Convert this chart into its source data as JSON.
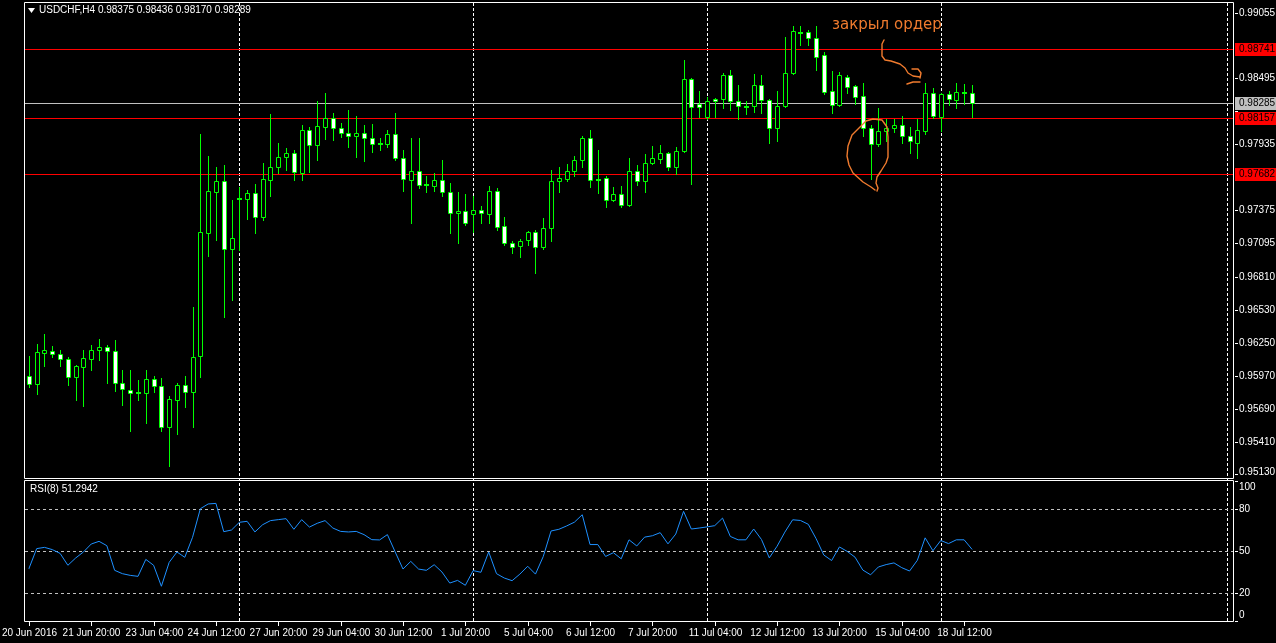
{
  "chart_data": [
    {
      "type": "candlestick",
      "title": "USDCHF,H4 0.98375 0.98436 0.98170 0.98289",
      "categories": [
        null,
        null,
        null,
        null,
        null,
        null,
        null,
        null,
        null,
        null,
        null,
        null,
        null,
        null,
        null,
        null,
        null,
        null,
        null,
        null,
        null,
        null,
        null,
        null,
        null,
        null,
        null,
        null,
        null,
        null,
        null,
        null,
        null,
        null,
        null,
        null,
        null,
        null,
        null,
        null,
        null,
        null,
        null,
        null,
        null,
        null,
        null,
        null,
        null,
        null,
        null,
        null,
        null,
        null,
        null,
        null,
        null,
        null,
        null,
        null,
        null,
        null,
        null,
        null,
        null,
        null,
        null,
        null,
        null,
        null,
        null,
        null,
        null,
        null,
        null,
        null,
        null,
        null,
        null,
        null,
        null,
        null,
        null,
        null,
        null,
        null,
        null,
        null,
        null,
        null,
        null,
        null,
        null,
        null,
        null,
        null,
        null,
        null,
        null,
        null,
        null,
        null,
        null,
        null,
        null,
        null,
        null,
        null,
        null,
        null,
        null,
        null,
        null,
        null,
        null,
        null,
        null,
        null,
        null,
        null,
        null,
        null,
        null,
        null,
        null,
        null,
        null,
        null,
        null,
        null,
        null,
        null,
        null,
        null,
        null,
        null,
        null,
        null,
        null,
        null,
        null,
        null,
        null,
        null,
        null,
        null,
        null,
        null,
        null,
        null,
        null,
        null,
        null,
        null,
        null
      ],
      "ohlc": [
        [
          0.9597,
          0.9614,
          0.9587,
          0.959
        ],
        [
          0.959,
          0.9624,
          0.9581,
          0.9617
        ],
        [
          0.9616,
          0.9632,
          0.9605,
          0.9619
        ],
        [
          0.9618,
          0.9622,
          0.9613,
          0.9615
        ],
        [
          0.9615,
          0.9619,
          0.9605,
          0.9611
        ],
        [
          0.9611,
          0.9613,
          0.9589,
          0.9596
        ],
        [
          0.9596,
          0.9606,
          0.9576,
          0.9605
        ],
        [
          0.9604,
          0.9619,
          0.9571,
          0.9612
        ],
        [
          0.9611,
          0.9623,
          0.9602,
          0.9619
        ],
        [
          0.9619,
          0.9628,
          0.961,
          0.9621
        ],
        [
          0.9621,
          0.9623,
          0.9591,
          0.9618
        ],
        [
          0.9618,
          0.9627,
          0.9584,
          0.9591
        ],
        [
          0.9591,
          0.9602,
          0.9572,
          0.9586
        ],
        [
          0.9585,
          0.9602,
          0.955,
          0.9582
        ],
        [
          0.9582,
          0.9593,
          0.9576,
          0.9583
        ],
        [
          0.9582,
          0.9602,
          0.9557,
          0.9594
        ],
        [
          0.9594,
          0.9597,
          0.9583,
          0.9588
        ],
        [
          0.9588,
          0.9595,
          0.955,
          0.9553
        ],
        [
          0.9553,
          0.958,
          0.952,
          0.9577
        ],
        [
          0.9576,
          0.9591,
          0.9547,
          0.9589
        ],
        [
          0.9589,
          0.9597,
          0.957,
          0.9583
        ],
        [
          0.9583,
          0.9655,
          0.9553,
          0.9613
        ],
        [
          0.9614,
          0.9802,
          0.9596,
          0.9719
        ],
        [
          0.9718,
          0.9784,
          0.9699,
          0.9754
        ],
        [
          0.9753,
          0.9774,
          0.9712,
          0.9762
        ],
        [
          0.9762,
          0.9776,
          0.9647,
          0.9705
        ],
        [
          0.9705,
          0.9746,
          0.9661,
          0.9714
        ],
        [
          0.9747,
          0.9757,
          0.9704,
          0.9748
        ],
        [
          0.9747,
          0.9755,
          0.973,
          0.9752
        ],
        [
          0.9752,
          0.976,
          0.9718,
          0.9732
        ],
        [
          0.9732,
          0.9778,
          0.9729,
          0.9764
        ],
        [
          0.9763,
          0.9819,
          0.975,
          0.9774
        ],
        [
          0.9774,
          0.9795,
          0.9769,
          0.9783
        ],
        [
          0.9783,
          0.979,
          0.9772,
          0.9786
        ],
        [
          0.9786,
          0.9789,
          0.9763,
          0.977
        ],
        [
          0.9769,
          0.981,
          0.9763,
          0.9806
        ],
        [
          0.9806,
          0.9808,
          0.977,
          0.9793
        ],
        [
          0.9793,
          0.983,
          0.978,
          0.9809
        ],
        [
          0.9808,
          0.9837,
          0.9798,
          0.9816
        ],
        [
          0.9816,
          0.982,
          0.9797,
          0.9807
        ],
        [
          0.9807,
          0.9812,
          0.98,
          0.9803
        ],
        [
          0.9803,
          0.9823,
          0.9791,
          0.9801
        ],
        [
          0.9801,
          0.9818,
          0.9783,
          0.9803
        ],
        [
          0.9803,
          0.981,
          0.9779,
          0.9799
        ],
        [
          0.9799,
          0.9811,
          0.9787,
          0.9794
        ],
        [
          0.9794,
          0.9799,
          0.9789,
          0.9795
        ],
        [
          0.9794,
          0.9806,
          0.9791,
          0.9802
        ],
        [
          0.9802,
          0.982,
          0.978,
          0.9782
        ],
        [
          0.9782,
          0.9789,
          0.9754,
          0.9764
        ],
        [
          0.9763,
          0.9799,
          0.9727,
          0.9771
        ],
        [
          0.9771,
          0.9799,
          0.9756,
          0.9759
        ],
        [
          0.9759,
          0.9767,
          0.9753,
          0.976
        ],
        [
          0.9758,
          0.9769,
          0.9754,
          0.9763
        ],
        [
          0.9763,
          0.978,
          0.975,
          0.9753
        ],
        [
          0.9753,
          0.9761,
          0.9718,
          0.9735
        ],
        [
          0.9735,
          0.9753,
          0.971,
          0.9737
        ],
        [
          0.9737,
          0.9751,
          0.9725,
          0.9727
        ],
        [
          0.9734,
          0.975,
          0.9719,
          0.9738
        ],
        [
          0.9738,
          0.9741,
          0.9727,
          0.9735
        ],
        [
          0.9734,
          0.9758,
          0.9727,
          0.9754
        ],
        [
          0.9754,
          0.9756,
          0.9721,
          0.9723
        ],
        [
          0.9724,
          0.9732,
          0.9708,
          0.971
        ],
        [
          0.971,
          0.9711,
          0.9701,
          0.9706
        ],
        [
          0.9707,
          0.9713,
          0.9698,
          0.9711
        ],
        [
          0.9712,
          0.972,
          0.9708,
          0.9719
        ],
        [
          0.9719,
          0.9721,
          0.9684,
          0.9706
        ],
        [
          0.9706,
          0.9731,
          0.9705,
          0.9722
        ],
        [
          0.9722,
          0.9772,
          0.9711,
          0.9762
        ],
        [
          0.9762,
          0.9774,
          0.9753,
          0.9765
        ],
        [
          0.9764,
          0.9777,
          0.9762,
          0.9771
        ],
        [
          0.9771,
          0.9784,
          0.9767,
          0.978
        ],
        [
          0.978,
          0.9801,
          0.9774,
          0.9799
        ],
        [
          0.9799,
          0.9806,
          0.9757,
          0.9763
        ],
        [
          0.9763,
          0.9789,
          0.9752,
          0.9764
        ],
        [
          0.9765,
          0.9767,
          0.974,
          0.9746
        ],
        [
          0.9746,
          0.9757,
          0.9745,
          0.9751
        ],
        [
          0.9751,
          0.9758,
          0.974,
          0.9742
        ],
        [
          0.9742,
          0.9782,
          0.9741,
          0.9771
        ],
        [
          0.9771,
          0.9776,
          0.9759,
          0.9762
        ],
        [
          0.9762,
          0.9785,
          0.9753,
          0.9778
        ],
        [
          0.9778,
          0.9792,
          0.9777,
          0.9782
        ],
        [
          0.9781,
          0.9793,
          0.9778,
          0.9786
        ],
        [
          0.9786,
          0.9787,
          0.9772,
          0.9774
        ],
        [
          0.9774,
          0.9791,
          0.9768,
          0.9788
        ],
        [
          0.9788,
          0.9865,
          0.9787,
          0.9849
        ],
        [
          0.9849,
          0.985,
          0.976,
          0.9825
        ],
        [
          0.9828,
          0.9839,
          0.9817,
          0.9825
        ],
        [
          0.9817,
          0.9834,
          0.9815,
          0.983
        ],
        [
          0.9832,
          0.9833,
          0.9817,
          0.983
        ],
        [
          0.9832,
          0.9854,
          0.9824,
          0.9852
        ],
        [
          0.9852,
          0.9857,
          0.9823,
          0.983
        ],
        [
          0.983,
          0.9844,
          0.9815,
          0.9826
        ],
        [
          0.9825,
          0.983,
          0.9819,
          0.9826
        ],
        [
          0.9826,
          0.9853,
          0.9821,
          0.9844
        ],
        [
          0.9844,
          0.9852,
          0.982,
          0.9831
        ],
        [
          0.9831,
          0.9832,
          0.9795,
          0.9807
        ],
        [
          0.9807,
          0.9839,
          0.9796,
          0.9826
        ],
        [
          0.9826,
          0.9885,
          0.9825,
          0.9854
        ],
        [
          0.9854,
          0.9894,
          0.9853,
          0.989
        ],
        [
          0.9888,
          0.9894,
          0.9878,
          0.9889
        ],
        [
          0.9889,
          0.9891,
          0.9878,
          0.9884
        ],
        [
          0.9884,
          0.9894,
          0.9857,
          0.9868
        ],
        [
          0.9869,
          0.9872,
          0.9836,
          0.9838
        ],
        [
          0.9839,
          0.9856,
          0.982,
          0.9827
        ],
        [
          0.9827,
          0.9855,
          0.9826,
          0.9852
        ],
        [
          0.9851,
          0.9852,
          0.9837,
          0.9842
        ],
        [
          0.9843,
          0.9844,
          0.9828,
          0.9834
        ],
        [
          0.9835,
          0.9846,
          0.9801,
          0.9807
        ],
        [
          0.9807,
          0.981,
          0.9764,
          0.9794
        ],
        [
          0.9794,
          0.9824,
          0.9792,
          0.9805
        ],
        [
          0.9805,
          0.9815,
          0.9796,
          0.9807
        ],
        [
          0.9807,
          0.9815,
          0.9804,
          0.981
        ],
        [
          0.981,
          0.9818,
          0.9795,
          0.9801
        ],
        [
          0.9801,
          0.9808,
          0.9786,
          0.9796
        ],
        [
          0.9795,
          0.9815,
          0.9782,
          0.9806
        ],
        [
          0.9805,
          0.9846,
          0.9802,
          0.9837
        ],
        [
          0.9837,
          0.9841,
          0.9816,
          0.9818
        ],
        [
          0.9817,
          0.9837,
          0.9805,
          0.9836
        ],
        [
          0.9836,
          0.9839,
          0.9827,
          0.9832
        ],
        [
          0.9831,
          0.9846,
          0.9824,
          0.9838
        ],
        [
          0.9837,
          0.9845,
          0.9828,
          0.9838
        ],
        [
          0.98375,
          0.98436,
          0.9817,
          0.98289
        ],
        null,
        null,
        null,
        null,
        null,
        null,
        null,
        null,
        null,
        null,
        null,
        null,
        null,
        null,
        null,
        null,
        null,
        null,
        null,
        null,
        null,
        null,
        null,
        null,
        null,
        null,
        null,
        null,
        null,
        null,
        null,
        null,
        null
      ],
      "color": "#00ff00",
      "colors": [
        "#ffffff",
        "#000000",
        "#000000",
        "#ffffff",
        "#ffffff",
        "#ffffff",
        "#000000",
        "#000000",
        "#000000",
        "#000000",
        "#ffffff",
        "#ffffff",
        "#ffffff",
        "#ffffff",
        "#00ff00",
        "#000000",
        "#ffffff",
        "#ffffff",
        "#000000",
        "#000000",
        "#ffffff",
        "#000000",
        "#000000",
        "#000000",
        "#000000",
        "#ffffff",
        "#000000",
        "#00ff00",
        "#000000",
        "#ffffff",
        "#000000",
        "#000000",
        "#000000",
        "#000000",
        "#ffffff",
        "#000000",
        "#ffffff",
        "#000000",
        "#000000",
        "#ffffff",
        "#ffffff",
        "#ffffff",
        "#000000",
        "#ffffff",
        "#ffffff",
        "#00ff00",
        "#000000",
        "#ffffff",
        "#ffffff",
        "#000000",
        "#ffffff",
        "#00ff00",
        "#000000",
        "#ffffff",
        "#ffffff",
        "#000000",
        "#ffffff",
        "#000000",
        "#ffffff",
        "#000000",
        "#ffffff",
        "#ffffff",
        "#ffffff",
        "#000000",
        "#000000",
        "#ffffff",
        "#000000",
        "#000000",
        "#000000",
        "#000000",
        "#000000",
        "#000000",
        "#ffffff",
        "#00ff00",
        "#ffffff",
        "#000000",
        "#ffffff",
        "#000000",
        "#ffffff",
        "#000000",
        "#000000",
        "#000000",
        "#ffffff",
        "#000000",
        "#000000",
        "#ffffff",
        "#ffffff",
        "#000000",
        "#ffffff",
        "#000000",
        "#ffffff",
        "#ffffff",
        "#00ff00",
        "#000000",
        "#ffffff",
        "#ffffff",
        "#000000",
        "#000000",
        "#000000",
        "#00ff00",
        "#ffffff",
        "#ffffff",
        "#ffffff",
        "#ffffff",
        "#000000",
        "#ffffff",
        "#ffffff",
        "#ffffff",
        "#ffffff",
        "#000000",
        "#000000",
        "#000000",
        "#ffffff",
        "#ffffff",
        "#000000",
        "#000000",
        "#ffffff",
        "#000000",
        "#ffffff",
        "#000000",
        "#00ff00",
        "#ffffff",
        null,
        null,
        null,
        null,
        null,
        null,
        null,
        null,
        null,
        null,
        null,
        null,
        null,
        null,
        null,
        null,
        null,
        null,
        null,
        null,
        null,
        null,
        null,
        null,
        null,
        null,
        null,
        null,
        null,
        null,
        null,
        null,
        null
      ],
      "ylim": [
        0.951,
        0.99136
      ],
      "yticks": [
        0.99055,
        {
          "value": 0.98775,
          "label": null
        },
        0.98495,
        {
          "value": 0.98215,
          "label": null
        },
        0.97935,
        {
          "value": 0.97655,
          "label": null
        },
        0.97375,
        0.97095,
        {
          "value": 0.9681,
          "label": "0.96810"
        },
        {
          "value": 0.9653,
          "label": "0.96530"
        },
        {
          "value": 0.9625,
          "label": "0.96250"
        },
        {
          "value": 0.9597,
          "label": "0.95970"
        },
        {
          "value": 0.9569,
          "label": "0.95690"
        },
        {
          "value": 0.9541,
          "label": "0.95410"
        },
        {
          "value": 0.9513,
          "label": "0.95130"
        }
      ],
      "ref_lines": [
        {
          "axis": "y",
          "value": 0.98741,
          "label": "0.98741",
          "color": "#ff0000",
          "line_style": "solid"
        },
        {
          "axis": "y",
          "value": 0.98285,
          "label": "0.98285",
          "color": "#c0c0c0",
          "line_style": "solid"
        },
        {
          "axis": "y",
          "value": 0.98157,
          "label": "0.98157",
          "color": "#ff0000",
          "line_style": "solid"
        },
        {
          "axis": "y",
          "value": 0.97682,
          "label": "0.97682",
          "color": "#ff0000",
          "line_style": "solid"
        }
      ],
      "annotations": [
        "закрыл ордер"
      ]
    },
    {
      "type": "line",
      "title": "RSI(8) 51.2942",
      "categories": [
        "20 Jun 2016",
        null,
        null,
        null,
        null,
        null,
        null,
        null,
        "21 Jun 20:00",
        null,
        null,
        null,
        null,
        null,
        null,
        null,
        "23 Jun 04:00",
        null,
        null,
        null,
        null,
        null,
        null,
        null,
        "24 Jun 12:00",
        null,
        null,
        null,
        null,
        null,
        null,
        null,
        "27 Jun 20:00",
        null,
        null,
        null,
        null,
        null,
        null,
        null,
        "29 Jun 04:00",
        null,
        null,
        null,
        null,
        null,
        null,
        null,
        "30 Jun 12:00",
        null,
        null,
        null,
        null,
        null,
        null,
        null,
        "1 Jul 20:00",
        null,
        null,
        null,
        null,
        null,
        null,
        null,
        "5 Jul 04:00",
        null,
        null,
        null,
        null,
        null,
        null,
        null,
        "6 Jul 12:00",
        null,
        null,
        null,
        null,
        null,
        null,
        null,
        "7 Jul 20:00",
        null,
        null,
        null,
        null,
        null,
        null,
        null,
        "11 Jul 04:00",
        null,
        null,
        null,
        null,
        null,
        null,
        null,
        "12 Jul 12:00",
        null,
        null,
        null,
        null,
        null,
        null,
        null,
        "13 Jul 20:00",
        null,
        null,
        null,
        null,
        null,
        null,
        null,
        "15 Jul 04:00",
        null,
        null,
        null,
        null,
        null,
        null,
        null,
        "18 Jul 12:00",
        null,
        null,
        null,
        null,
        null,
        null,
        null,
        null,
        null,
        null,
        null,
        null,
        null,
        null,
        null,
        null,
        null,
        null,
        null,
        null,
        null,
        null,
        null,
        null,
        null,
        null,
        null,
        null,
        null,
        null,
        null,
        null,
        null,
        null
      ],
      "values": [
        37.4,
        51.7,
        52.6,
        51.0,
        48.3,
        39.8,
        45.0,
        49.3,
        55.0,
        56.9,
        53.8,
        36.2,
        33.8,
        32.6,
        31.9,
        44.0,
        39.8,
        24.8,
        41.9,
        49.3,
        45.5,
        59.8,
        80.2,
        83.6,
        84.0,
        63.8,
        65.0,
        70.5,
        71.2,
        63.6,
        68.8,
        71.7,
        72.4,
        73.1,
        65.5,
        72.4,
        67.1,
        69.8,
        71.7,
        66.4,
        64.0,
        63.6,
        64.0,
        61.7,
        58.1,
        57.9,
        61.7,
        49.3,
        37.1,
        42.6,
        37.1,
        36.2,
        40.2,
        35.0,
        27.1,
        29.0,
        25.5,
        36.0,
        34.8,
        49.3,
        33.8,
        30.7,
        28.8,
        33.5,
        39.1,
        33.5,
        46.1,
        64.3,
        65.5,
        67.9,
        70.6,
        75.9,
        54.6,
        54.6,
        46.1,
        48.8,
        44.4,
        58.0,
        53.6,
        59.9,
        60.9,
        63.1,
        55.1,
        62.1,
        78.3,
        65.7,
        66.4,
        67.2,
        68.1,
        73.5,
        60.4,
        58.0,
        58.0,
        65.7,
        58.2,
        45.1,
        53.4,
        63.5,
        72.3,
        71.8,
        69.1,
        58.9,
        47.1,
        43.2,
        52.9,
        49.7,
        45.6,
        36.4,
        33.0,
        38.6,
        40.3,
        41.5,
        38.1,
        35.7,
        43.4,
        59.4,
        50.2,
        57.5,
        55.3,
        58.0,
        58.0,
        51.3,
        null,
        null,
        null,
        null,
        null,
        null,
        null,
        null,
        null,
        null,
        null,
        null,
        null,
        null,
        null,
        null,
        null,
        null,
        null,
        null,
        null,
        null,
        null,
        null,
        null,
        null,
        null,
        null,
        null,
        null,
        null,
        null,
        null
      ],
      "color": "#1e90ff",
      "ylim": [
        0,
        100
      ],
      "yticks": [
        100,
        80,
        50,
        20,
        0
      ],
      "ref_lines": [
        {
          "axis": "y",
          "value": 80,
          "color": "#c0c0c0",
          "line_style": "dashed"
        },
        {
          "axis": "y",
          "value": 50,
          "color": "#c0c0c0",
          "line_style": "dashed"
        },
        {
          "axis": "y",
          "value": 20,
          "color": "#c0c0c0",
          "line_style": "dashed"
        }
      ]
    }
  ]
}
